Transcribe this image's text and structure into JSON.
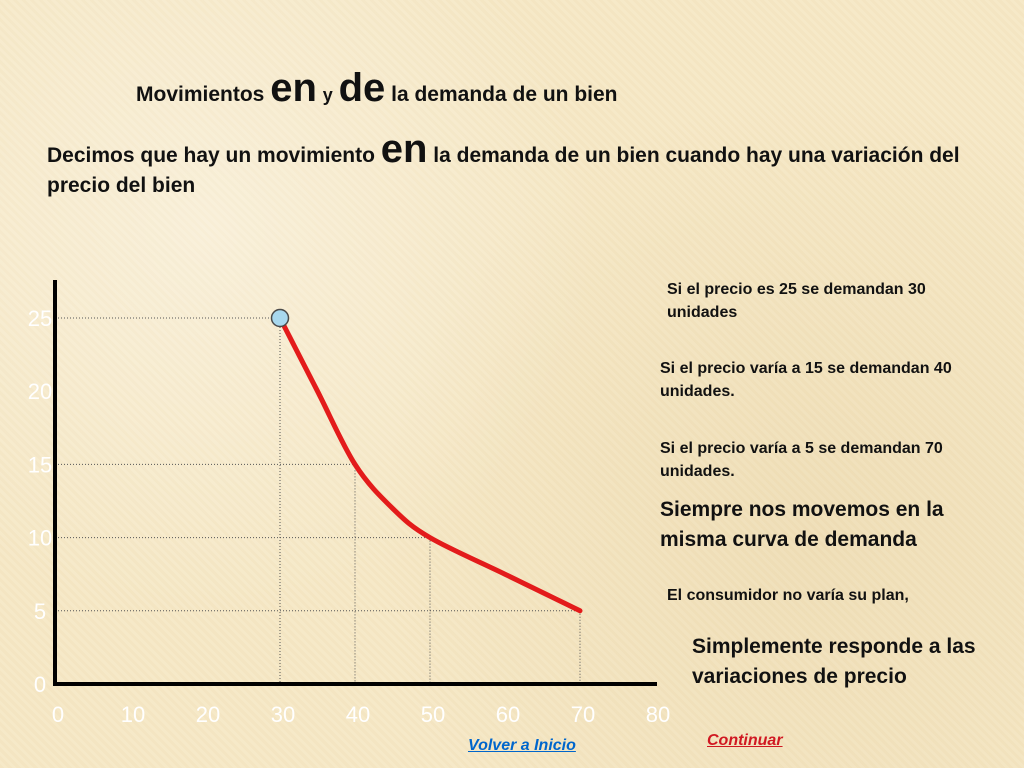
{
  "slide": {
    "title": {
      "part1": "Movimientos",
      "part2": "en",
      "part3": "y",
      "part4": "de",
      "part5": "la demanda de un bien"
    },
    "intro": {
      "part1": "Decimos que hay un movimiento",
      "part2": "en",
      "part3": "la demanda de un bien cuando hay una variación del precio del bien"
    },
    "notes": [
      "Si el precio es 25 se demandan 30 unidades",
      "Si el precio varía a 15 se demandan 40 unidades.",
      "Si el precio varía a 5 se demandan 70 unidades.",
      "Siempre nos movemos en la misma curva de demanda",
      "El consumidor no varía su plan,",
      "Simplemente responde a las variaciones de precio"
    ],
    "links": {
      "back": "Volver a Inicio",
      "continue": "Continuar"
    }
  },
  "chart_data": {
    "type": "line",
    "x_ticks": [
      "0",
      "10",
      "20",
      "30",
      "40",
      "50",
      "60",
      "70",
      "80"
    ],
    "y_ticks": [
      "0",
      "5",
      "10",
      "15",
      "20",
      "25"
    ],
    "xlim": [
      0,
      80
    ],
    "ylim": [
      0,
      25
    ],
    "grid": false,
    "guides": [
      {
        "x": 30,
        "y": 25
      },
      {
        "x": 40,
        "y": 15
      },
      {
        "x": 50,
        "y": 10
      },
      {
        "x": 70,
        "y": 5
      }
    ],
    "curve": [
      {
        "x": 30,
        "y": 25
      },
      {
        "x": 35,
        "y": 20
      },
      {
        "x": 40,
        "y": 15
      },
      {
        "x": 45,
        "y": 12
      },
      {
        "x": 50,
        "y": 10
      },
      {
        "x": 60,
        "y": 7.5
      },
      {
        "x": 70,
        "y": 5
      }
    ],
    "marker": {
      "x": 30,
      "y": 25
    },
    "colors": {
      "curve": "#e31b1b",
      "axis": "#000000",
      "guides": "#555555",
      "tick_labels": "#ffffff",
      "marker_fill": "#a8d8ee"
    }
  }
}
